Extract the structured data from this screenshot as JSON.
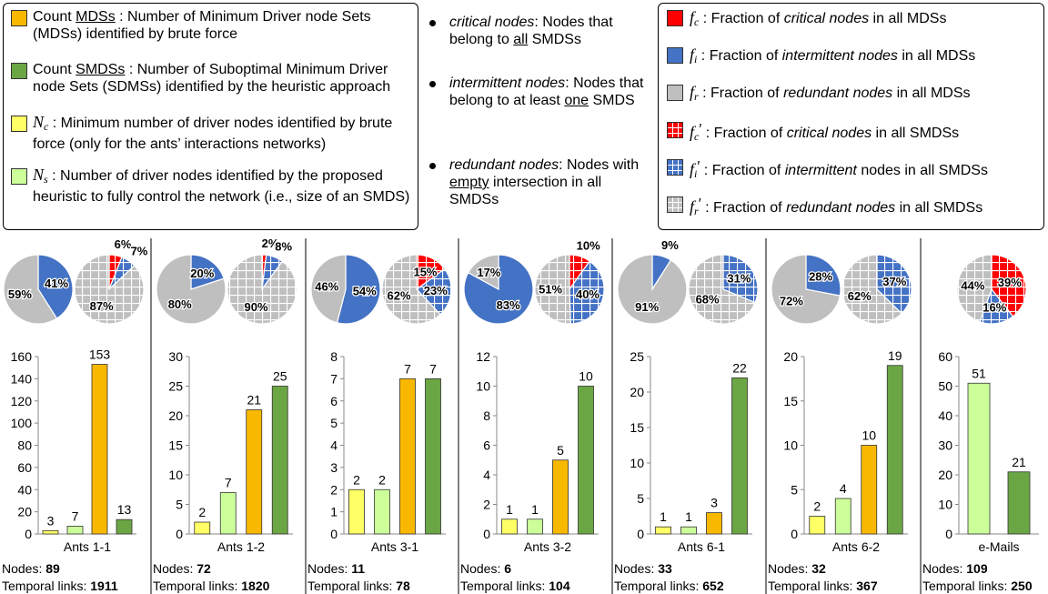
{
  "colors": {
    "count_mdss": "#F9B800",
    "count_smdss": "#6BA644",
    "nc": "#FFFF66",
    "ns": "#CCFF99",
    "critical": "#FF0000",
    "intermittent": "#4472C4",
    "redundant": "#BFBFBF"
  },
  "legend_left": [
    {
      "id": "count_mdss",
      "prefix": "Count ",
      "term": "MDSs",
      "text": " : Number of Minimum Driver node Sets (MDSs) identified by brute force"
    },
    {
      "id": "count_smdss",
      "prefix": "Count ",
      "term": "SMDSs",
      "text": " : Number of Suboptimal Minimum Driver node Sets (SDMSs) identified by the heuristic approach"
    },
    {
      "id": "nc",
      "symbol": "N",
      "sub": "c",
      "text": " : Minimum number of driver nodes identified by brute force (only for the ants’ interactions networks)"
    },
    {
      "id": "ns",
      "symbol": "N",
      "sub": "s",
      "text": " : Number of driver nodes identified by the proposed heuristic to fully control the network (i.e., size of an SMDS)"
    }
  ],
  "legend_middle": [
    {
      "term": "critical nodes",
      "pre": ": Nodes that belong to ",
      "key": "all",
      "post": " SMDSs"
    },
    {
      "term": "intermittent nodes",
      "pre": ": Nodes that belong to at least ",
      "key": "one",
      "post": " SMDS"
    },
    {
      "term": "redundant nodes",
      "pre": ": Nodes with ",
      "key": "empty",
      "post": " intersection in all SMDSs"
    }
  ],
  "legend_right": [
    {
      "sym": "f",
      "sub": "c",
      "prime": false,
      "pre": " : Fraction of ",
      "term": "critical nodes",
      "post": " in all MDSs",
      "color": "critical",
      "grid": false
    },
    {
      "sym": "f",
      "sub": "i",
      "prime": false,
      "pre": " : Fraction of ",
      "term": "intermittent nodes",
      "post": " in all MDSs",
      "color": "intermittent",
      "grid": false
    },
    {
      "sym": "f",
      "sub": "r",
      "prime": false,
      "pre": " : Fraction of ",
      "term": "redundant nodes",
      "post": " in all MDSs",
      "color": "redundant",
      "grid": false
    },
    {
      "sym": "f",
      "sub": "c",
      "prime": true,
      "pre": " : Fraction of ",
      "term": "critical nodes",
      "post": " in all SMDSs",
      "color": "critical",
      "grid": true
    },
    {
      "sym": "f",
      "sub": "i",
      "prime": true,
      "pre": " : Fraction of ",
      "term": "intermittent",
      "post": " nodes in all SMDSs",
      "color": "intermittent",
      "grid": true
    },
    {
      "sym": "f",
      "sub": "r",
      "prime": true,
      "pre": " : Fraction of ",
      "term": "redundant nodes",
      "post": " in all SMDSs",
      "color": "redundant",
      "grid": true
    }
  ],
  "footer_labels": {
    "nodes": "Nodes: ",
    "links": "Temporal links: "
  },
  "chart_data": [
    {
      "type": "bar",
      "network": "Ants 1-1",
      "nodes": "89",
      "temporal_links": "1911",
      "categories": [
        "Nc",
        "Ns",
        "Count MDSs",
        "Count SMDSs"
      ],
      "values": [
        3,
        7,
        153,
        13
      ],
      "ylim": [
        0,
        160
      ],
      "yticks": [
        0,
        20,
        40,
        60,
        80,
        100,
        120,
        140,
        160
      ],
      "pie_mds": {
        "critical": 0,
        "intermittent": 41,
        "redundant": 59,
        "labels": [
          "41%",
          "59%"
        ]
      },
      "pie_smds": {
        "critical": 6,
        "intermittent": 7,
        "redundant": 87,
        "labels": [
          "6%",
          "7%",
          "87%"
        ]
      }
    },
    {
      "type": "bar",
      "network": "Ants 1-2",
      "nodes": "72",
      "temporal_links": "1820",
      "categories": [
        "Nc",
        "Ns",
        "Count MDSs",
        "Count SMDSs"
      ],
      "values": [
        2,
        7,
        21,
        25
      ],
      "ylim": [
        0,
        30
      ],
      "yticks": [
        0,
        5,
        10,
        15,
        20,
        25,
        30
      ],
      "pie_mds": {
        "critical": 0,
        "intermittent": 20,
        "redundant": 80,
        "labels": [
          "20%",
          "80%"
        ]
      },
      "pie_smds": {
        "critical": 2,
        "intermittent": 8,
        "redundant": 90,
        "labels": [
          "2%",
          "8%",
          "90%"
        ]
      }
    },
    {
      "type": "bar",
      "network": "Ants 3-1",
      "nodes": "11",
      "temporal_links": "78",
      "categories": [
        "Nc",
        "Ns",
        "Count MDSs",
        "Count SMDSs"
      ],
      "values": [
        2,
        2,
        7,
        7
      ],
      "ylim": [
        0,
        8
      ],
      "yticks": [
        0,
        1,
        2,
        3,
        4,
        5,
        6,
        7,
        8
      ],
      "pie_mds": {
        "critical": 0,
        "intermittent": 54,
        "redundant": 46,
        "labels": [
          "54%",
          "46%"
        ]
      },
      "pie_smds": {
        "critical": 15,
        "intermittent": 23,
        "redundant": 62,
        "labels": [
          "15%",
          "23%",
          "62%"
        ]
      }
    },
    {
      "type": "bar",
      "network": "Ants 3-2",
      "nodes": "6",
      "temporal_links": "104",
      "categories": [
        "Nc",
        "Ns",
        "Count MDSs",
        "Count SMDSs"
      ],
      "values": [
        1,
        1,
        5,
        10
      ],
      "ylim": [
        0,
        12
      ],
      "yticks": [
        0,
        2,
        4,
        6,
        8,
        10,
        12
      ],
      "pie_mds": {
        "critical": 0,
        "intermittent": 83,
        "redundant": 17,
        "labels": [
          "83%",
          "17%"
        ]
      },
      "pie_smds": {
        "critical": 10,
        "intermittent": 40,
        "redundant": 51,
        "labels": [
          "10%",
          "40%",
          "51%"
        ]
      }
    },
    {
      "type": "bar",
      "network": "Ants 6-1",
      "nodes": "33",
      "temporal_links": "652",
      "categories": [
        "Nc",
        "Ns",
        "Count MDSs",
        "Count SMDSs"
      ],
      "values": [
        1,
        1,
        3,
        22
      ],
      "ylim": [
        0,
        25
      ],
      "yticks": [
        0,
        5,
        10,
        15,
        20,
        25
      ],
      "pie_mds": {
        "critical": 0,
        "intermittent": 9,
        "redundant": 91,
        "labels": [
          "9%",
          "91%"
        ]
      },
      "pie_smds": {
        "critical": 0,
        "intermittent": 31,
        "redundant": 68,
        "labels": [
          "31%",
          "68%"
        ]
      }
    },
    {
      "type": "bar",
      "network": "Ants 6-2",
      "nodes": "32",
      "temporal_links": "367",
      "categories": [
        "Nc",
        "Ns",
        "Count MDSs",
        "Count SMDSs"
      ],
      "values": [
        2,
        4,
        10,
        19
      ],
      "ylim": [
        0,
        20
      ],
      "yticks": [
        0,
        5,
        10,
        15,
        20
      ],
      "pie_mds": {
        "critical": 0,
        "intermittent": 28,
        "redundant": 72,
        "labels": [
          "28%",
          "72%"
        ]
      },
      "pie_smds": {
        "critical": 0,
        "intermittent": 37,
        "redundant": 62,
        "labels": [
          "37%",
          "62%"
        ]
      }
    },
    {
      "type": "bar",
      "network": "e-Mails",
      "nodes": "109",
      "temporal_links": "250",
      "categories": [
        "Ns",
        "Count SMDSs"
      ],
      "values": [
        51,
        21
      ],
      "ylim": [
        0,
        60
      ],
      "yticks": [
        0,
        10,
        20,
        30,
        40,
        50,
        60
      ],
      "pie_smds": {
        "critical": 39,
        "intermittent": 16,
        "redundant": 44,
        "labels": [
          "39%",
          "16%",
          "44%"
        ]
      }
    }
  ]
}
